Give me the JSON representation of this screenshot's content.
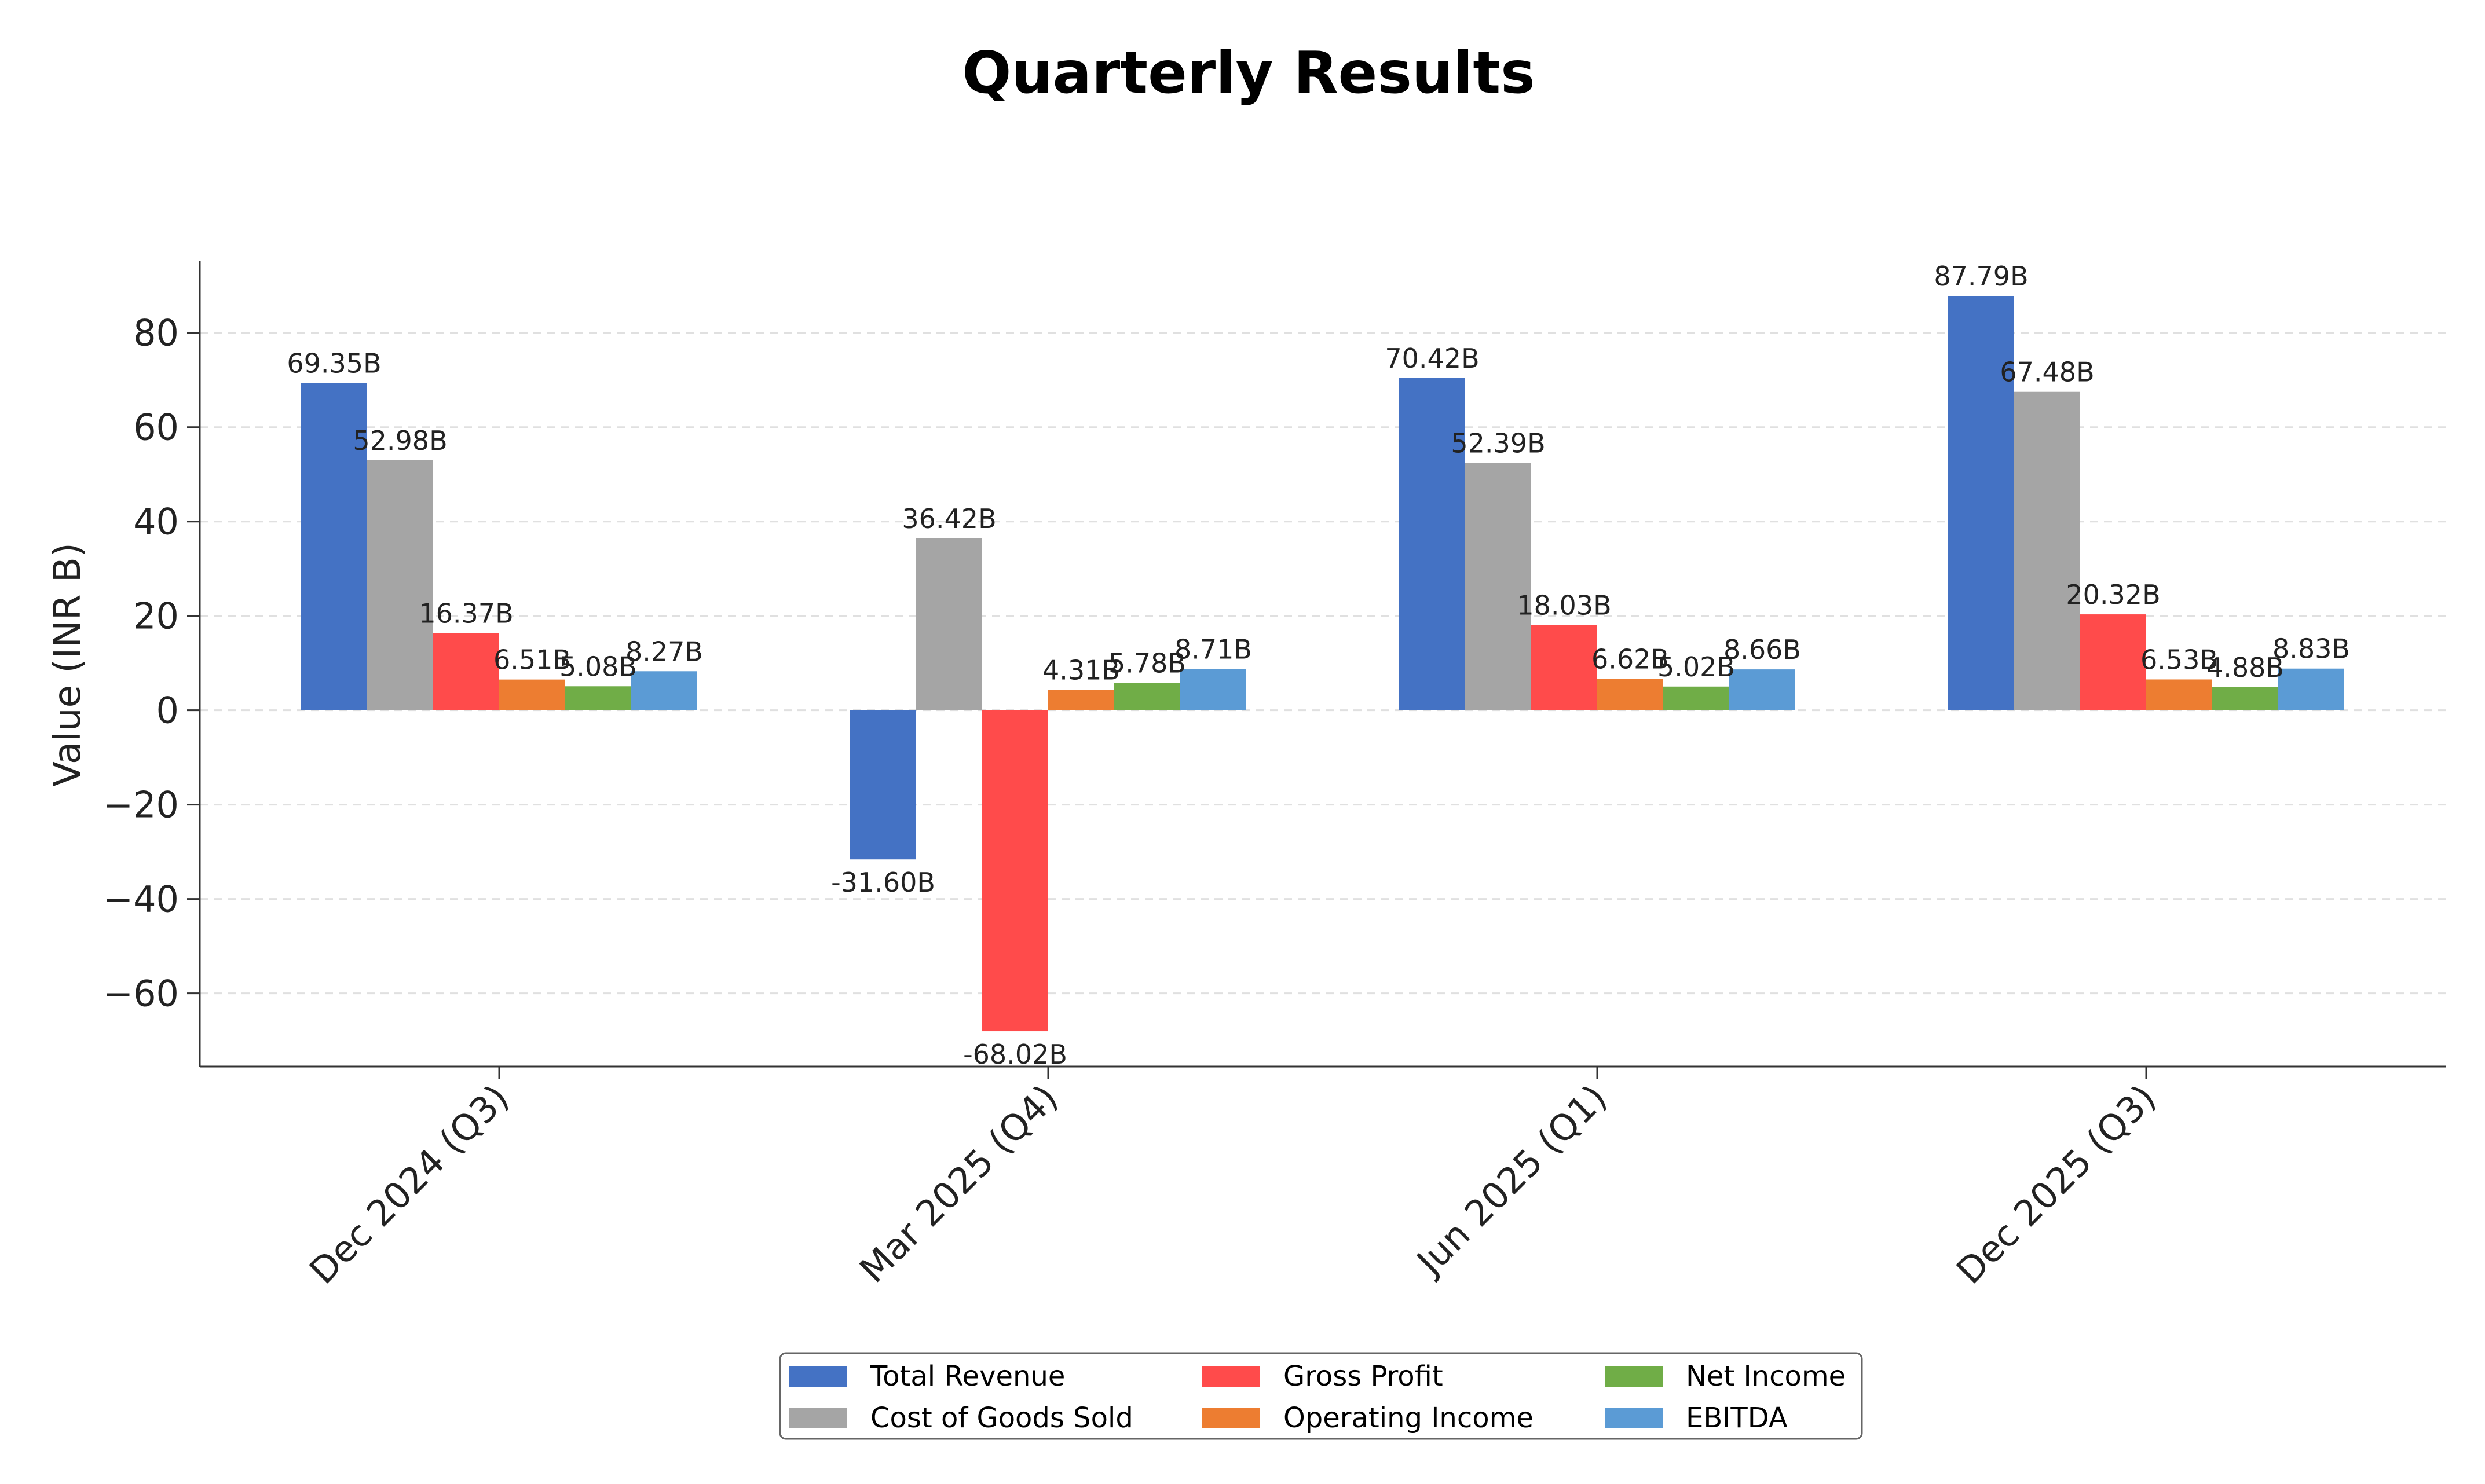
{
  "chart_data": {
    "type": "bar",
    "title": "Quarterly Results",
    "xlabel": "",
    "ylabel": "Value (INR B)",
    "categories": [
      "Dec 2024 (Q3)",
      "Mar 2025 (Q4)",
      "Jun 2025 (Q1)",
      "Dec 2025 (Q3)"
    ],
    "ylim": [
      -75.5,
      95.3
    ],
    "yticks": [
      -60,
      -40,
      -20,
      0,
      20,
      40,
      60,
      80
    ],
    "ytick_labels": [
      "−60",
      "−40",
      "−20",
      "0",
      "20",
      "40",
      "60",
      "80"
    ],
    "grid": "y-dashed",
    "legend_position": "bottom-center",
    "legend_columns": 3,
    "series": [
      {
        "name": "Total Revenue",
        "color": "#4472C4",
        "values": [
          69.35,
          -31.6,
          70.42,
          87.79
        ],
        "labels": [
          "69.35B",
          "-31.60B",
          "70.42B",
          "87.79B"
        ]
      },
      {
        "name": "Cost of Goods Sold",
        "color": "#A5A5A5",
        "values": [
          52.98,
          36.42,
          52.39,
          67.48
        ],
        "labels": [
          "52.98B",
          "36.42B",
          "52.39B",
          "67.48B"
        ]
      },
      {
        "name": "Gross Profit",
        "color": "#FF4B4B",
        "values": [
          16.37,
          -68.02,
          18.03,
          20.32
        ],
        "labels": [
          "16.37B",
          "-68.02B",
          "18.03B",
          "20.32B"
        ]
      },
      {
        "name": "Operating Income",
        "color": "#ED7D31",
        "values": [
          6.51,
          4.31,
          6.62,
          6.53
        ],
        "labels": [
          "6.51B",
          "4.31B",
          "6.62B",
          "6.53B"
        ]
      },
      {
        "name": "Net Income",
        "color": "#70AD47",
        "values": [
          5.08,
          5.78,
          5.02,
          4.88
        ],
        "labels": [
          "5.08B",
          "5.78B",
          "5.02B",
          "4.88B"
        ]
      },
      {
        "name": "EBITDA",
        "color": "#5B9BD5",
        "values": [
          8.27,
          8.71,
          8.66,
          8.83
        ],
        "labels": [
          "8.27B",
          "8.71B",
          "8.66B",
          "8.83B"
        ]
      }
    ]
  }
}
